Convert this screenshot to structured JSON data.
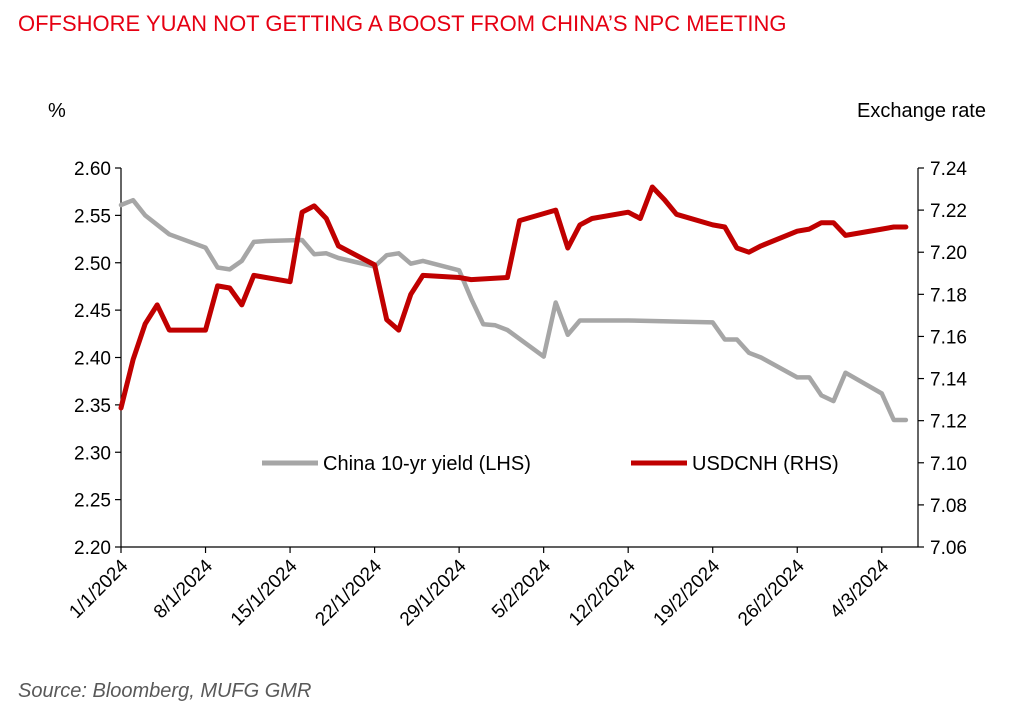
{
  "chart_data": {
    "type": "line",
    "title": "OFFSHORE YUAN NOT GETTING A BOOST FROM CHINA’S NPC MEETING",
    "y_left_label": "%",
    "y_right_label": "Exchange rate",
    "source": "Source: Bloomberg, MUFG GMR",
    "y_left_range": [
      2.2,
      2.6
    ],
    "y_left_ticks": [
      "2.20",
      "2.25",
      "2.30",
      "2.35",
      "2.40",
      "2.45",
      "2.50",
      "2.55",
      "2.60"
    ],
    "y_right_range": [
      7.06,
      7.24
    ],
    "y_right_ticks": [
      "7.06",
      "7.08",
      "7.10",
      "7.12",
      "7.14",
      "7.16",
      "7.18",
      "7.20",
      "7.22",
      "7.24"
    ],
    "x_range_days": [
      0,
      66
    ],
    "x_ticks": [
      {
        "day": 0,
        "label": "1/1/2024"
      },
      {
        "day": 7,
        "label": "8/1/2024"
      },
      {
        "day": 14,
        "label": "15/1/2024"
      },
      {
        "day": 21,
        "label": "22/1/2024"
      },
      {
        "day": 28,
        "label": "29/1/2024"
      },
      {
        "day": 35,
        "label": "5/2/2024"
      },
      {
        "day": 42,
        "label": "12/2/2024"
      },
      {
        "day": 49,
        "label": "19/2/2024"
      },
      {
        "day": 56,
        "label": "26/2/2024"
      },
      {
        "day": 63,
        "label": "4/3/2024"
      }
    ],
    "series": [
      {
        "name": "China 10-yr yield (LHS)",
        "axis": "left",
        "color": "#a6a6a6",
        "x": [
          0,
          1,
          2,
          4,
          7,
          8,
          9,
          10,
          11,
          12,
          15,
          16,
          17,
          18,
          21,
          22,
          23,
          24,
          25,
          28,
          29,
          30,
          31,
          32,
          35,
          36,
          37,
          38,
          42,
          49,
          50,
          51,
          52,
          53,
          56,
          57,
          58,
          59,
          60,
          63,
          64,
          65
        ],
        "values": [
          2.561,
          2.566,
          2.55,
          2.53,
          2.516,
          2.495,
          2.493,
          2.502,
          2.522,
          2.523,
          2.524,
          2.509,
          2.51,
          2.505,
          2.496,
          2.508,
          2.51,
          2.499,
          2.502,
          2.492,
          2.462,
          2.435,
          2.434,
          2.429,
          2.401,
          2.458,
          2.424,
          2.439,
          2.439,
          2.437,
          2.419,
          2.419,
          2.405,
          2.4,
          2.379,
          2.379,
          2.36,
          2.354,
          2.384,
          2.362,
          2.334,
          2.334
        ]
      },
      {
        "name": "USDCNH (RHS)",
        "axis": "right",
        "color": "#c00000",
        "x": [
          0,
          1,
          2,
          3,
          4,
          7,
          8,
          9,
          10,
          11,
          14,
          15,
          16,
          17,
          18,
          21,
          22,
          23,
          24,
          25,
          28,
          29,
          32,
          33,
          36,
          37,
          38,
          39,
          42,
          43,
          44,
          45,
          46,
          49,
          50,
          51,
          52,
          53,
          56,
          57,
          58,
          59,
          60,
          63,
          64,
          65
        ],
        "values": [
          7.126,
          7.149,
          7.166,
          7.175,
          7.163,
          7.163,
          7.184,
          7.183,
          7.175,
          7.189,
          7.186,
          7.219,
          7.222,
          7.216,
          7.203,
          7.194,
          7.168,
          7.163,
          7.18,
          7.189,
          7.188,
          7.187,
          7.188,
          7.215,
          7.22,
          7.202,
          7.213,
          7.216,
          7.219,
          7.216,
          7.231,
          7.225,
          7.218,
          7.213,
          7.212,
          7.202,
          7.2,
          7.203,
          7.21,
          7.211,
          7.214,
          7.214,
          7.208,
          7.211,
          7.212,
          7.212
        ]
      }
    ]
  }
}
